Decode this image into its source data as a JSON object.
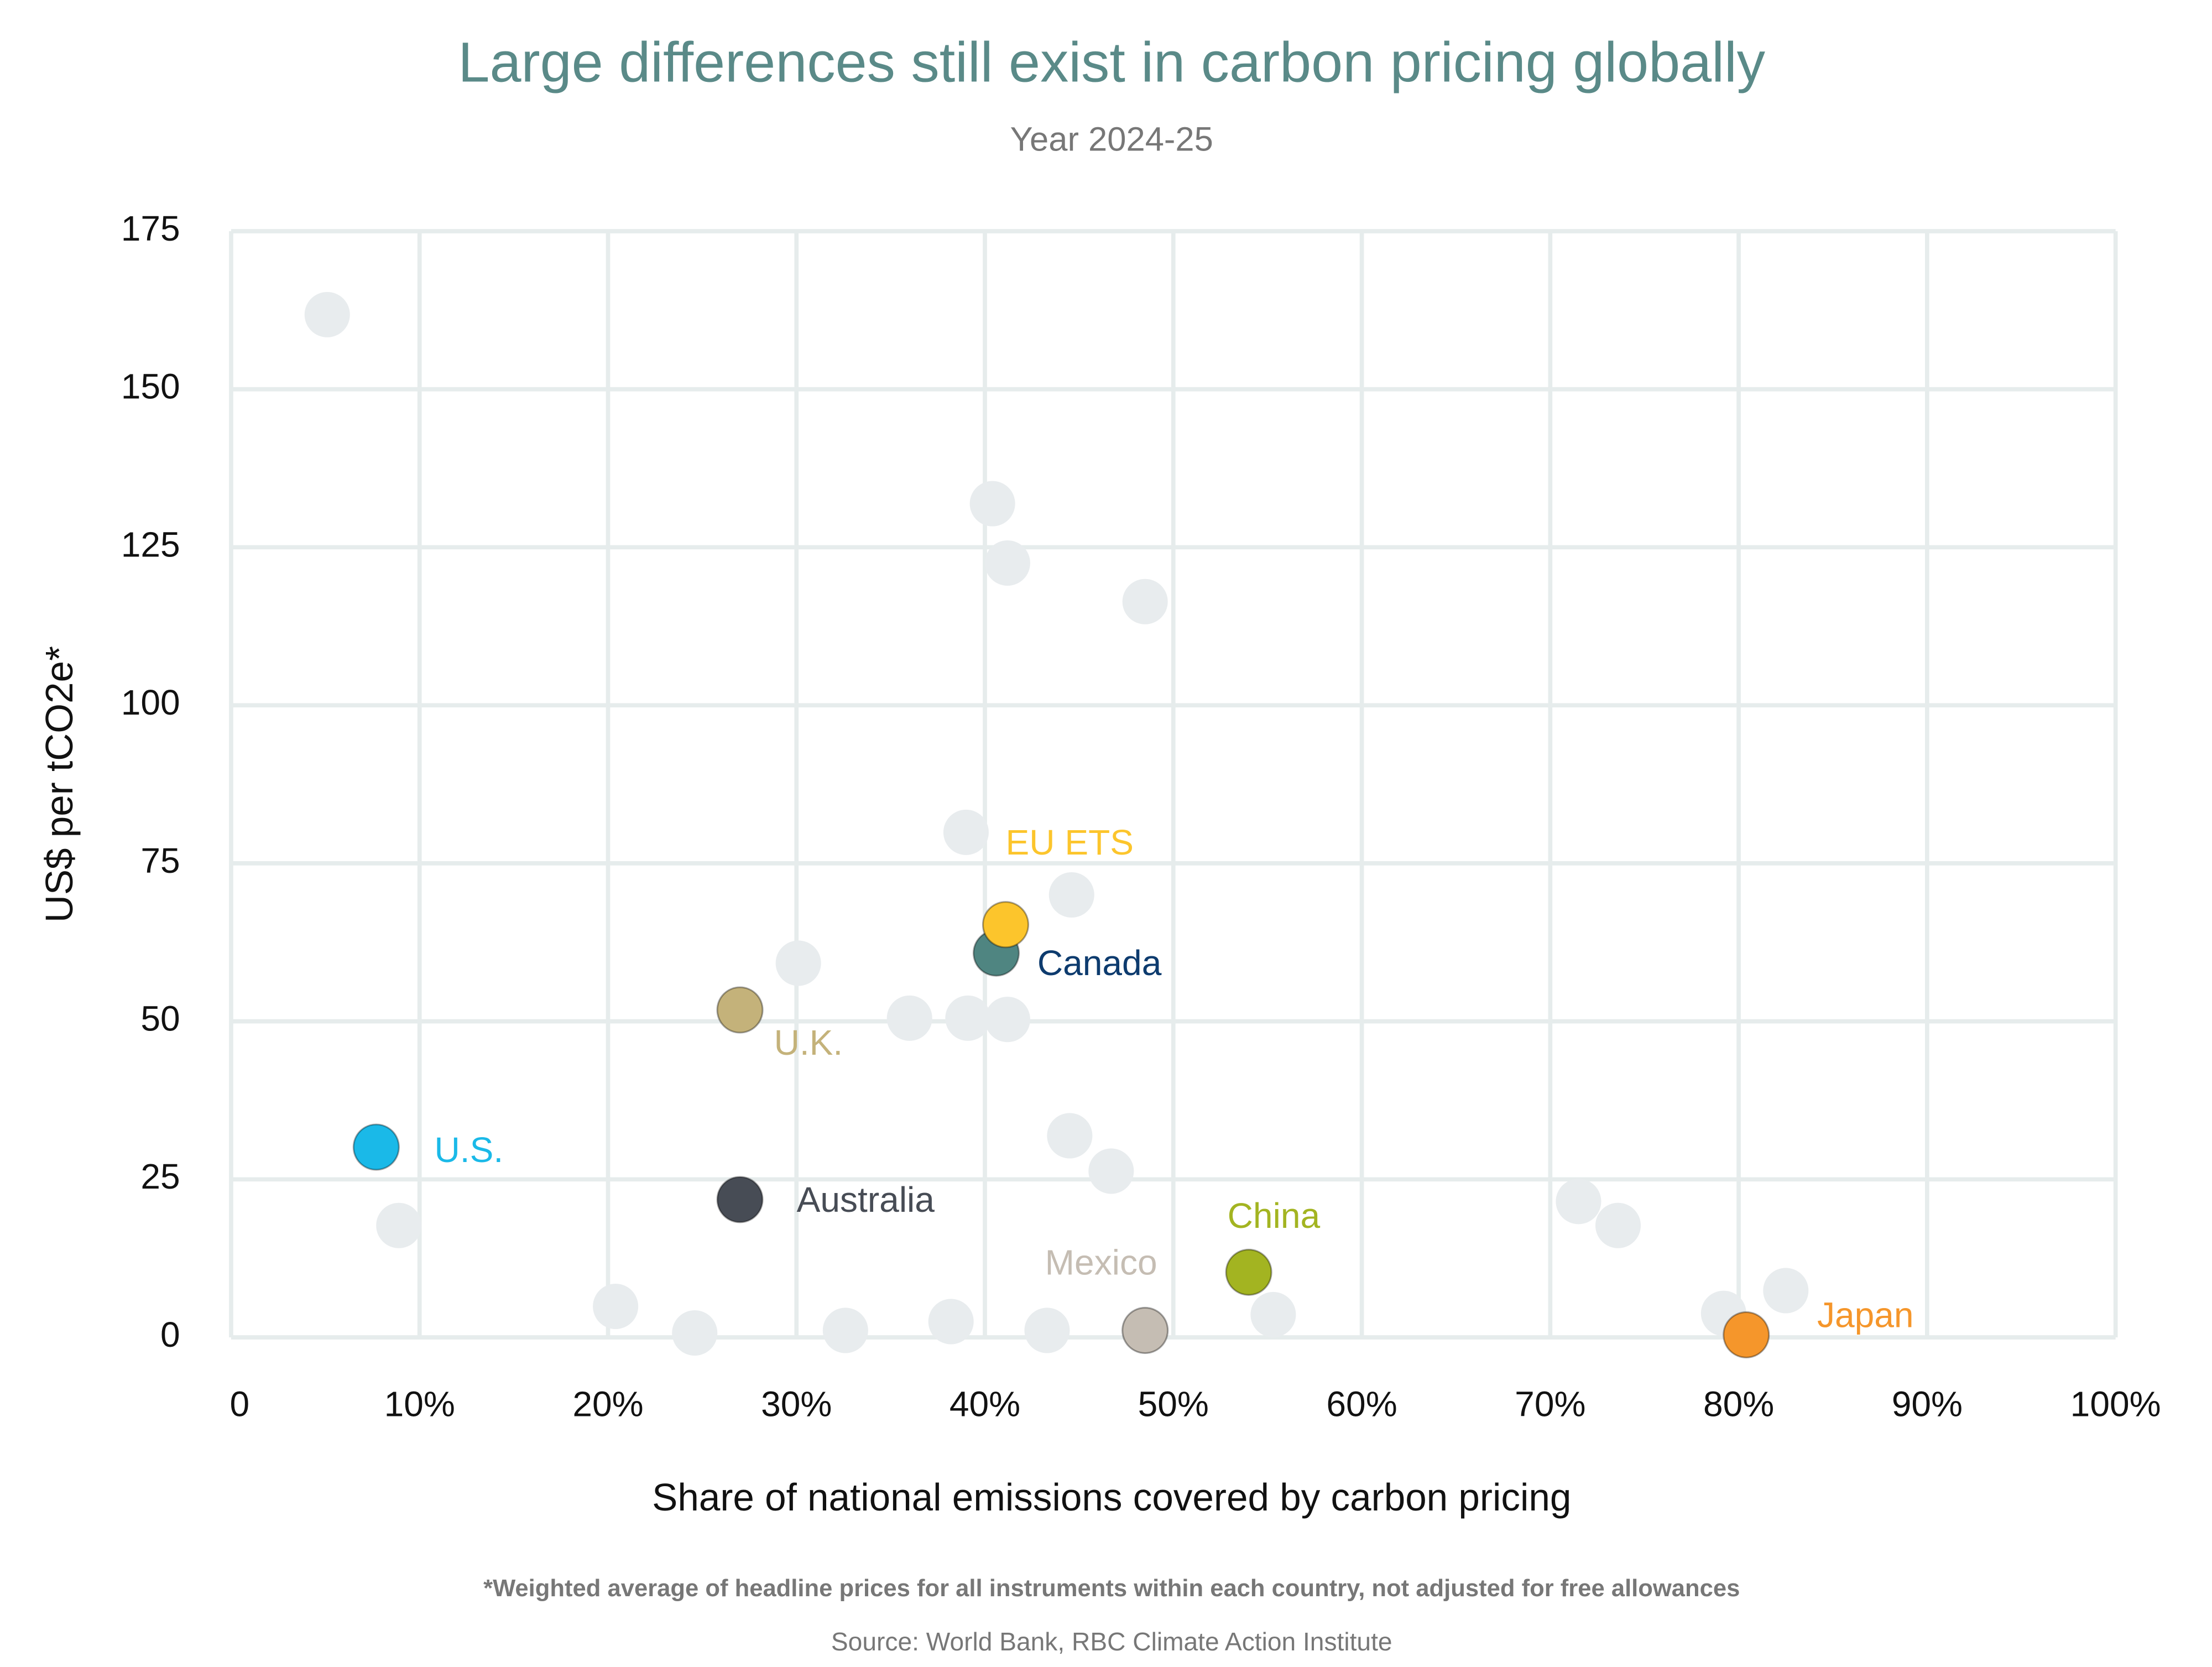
{
  "chart_data": {
    "type": "scatter",
    "title": "Large differences still exist in carbon pricing globally",
    "subtitle": "Year 2024-25",
    "x_label": "Share of national emissions covered by carbon pricing",
    "y_label": "US$ per tCO2e*",
    "footnote": "*Weighted average of headline prices for all instruments within each country, not adjusted for free allowances",
    "source": "Source: World Bank, RBC Climate Action Institute",
    "xlim": [
      0,
      100
    ],
    "ylim": [
      0,
      175
    ],
    "xticks": [
      0,
      {
        "value": 10,
        "label": "10%"
      },
      {
        "value": 20,
        "label": "20%"
      },
      {
        "value": 30,
        "label": "30%"
      },
      {
        "value": 40,
        "label": "40%"
      },
      {
        "value": 50,
        "label": "50%"
      },
      {
        "value": 60,
        "label": "60%"
      },
      {
        "value": 70,
        "label": "70%"
      },
      {
        "value": 80,
        "label": "80%"
      },
      {
        "value": 90,
        "label": "90%"
      },
      {
        "value": 100,
        "label": "100%"
      }
    ],
    "yticks": [
      0,
      25,
      50,
      75,
      100,
      125,
      150,
      175
    ],
    "grid": true,
    "background_points": {
      "color": "#e8ecee",
      "x": [
        5.1,
        40.4,
        41.2,
        48.5,
        39.0,
        44.6,
        30.1,
        36.0,
        39.1,
        41.2,
        44.5,
        46.7,
        8.9,
        20.4,
        24.6,
        32.6,
        38.2,
        43.3,
        55.3,
        71.5,
        73.6,
        79.2,
        82.5
      ],
      "values": [
        161.8,
        131.9,
        122.5,
        116.4,
        79.9,
        70.0,
        59.2,
        50.5,
        50.5,
        50.3,
        31.9,
        26.3,
        17.7,
        4.9,
        0.7,
        1.1,
        2.5,
        1.1,
        3.6,
        21.5,
        17.7,
        3.8,
        7.4
      ]
    },
    "series": [
      {
        "name": "U.S.",
        "color": "#1ab9e8",
        "label_color": "#1ab9e8",
        "x": [
          7.7
        ],
        "values": [
          30.1
        ]
      },
      {
        "name": "Australia",
        "color": "#474c55",
        "label_color": "#474c55",
        "x": [
          27.0
        ],
        "values": [
          21.8
        ]
      },
      {
        "name": "U.K.",
        "color": "#c4b27a",
        "label_color": "#c4b27a",
        "x": [
          27.0
        ],
        "values": [
          51.8
        ]
      },
      {
        "name": "Canada",
        "color": "#4f8581",
        "label_color": "#0d3b6e",
        "x": [
          40.6
        ],
        "values": [
          60.8
        ]
      },
      {
        "name": "EU ETS",
        "color": "#fcc52c",
        "label_color": "#fcc52c",
        "x": [
          41.1
        ],
        "values": [
          65.3
        ]
      },
      {
        "name": "Mexico",
        "color": "#c5bdb3",
        "label_color": "#c5bdb3",
        "x": [
          48.5
        ],
        "values": [
          1.1
        ]
      },
      {
        "name": "China",
        "color": "#a3b421",
        "label_color": "#a3b421",
        "x": [
          54.0
        ],
        "values": [
          10.3
        ]
      },
      {
        "name": "Japan",
        "color": "#f5962b",
        "label_color": "#f5962b",
        "x": [
          80.4
        ],
        "values": [
          0.4
        ]
      }
    ]
  }
}
